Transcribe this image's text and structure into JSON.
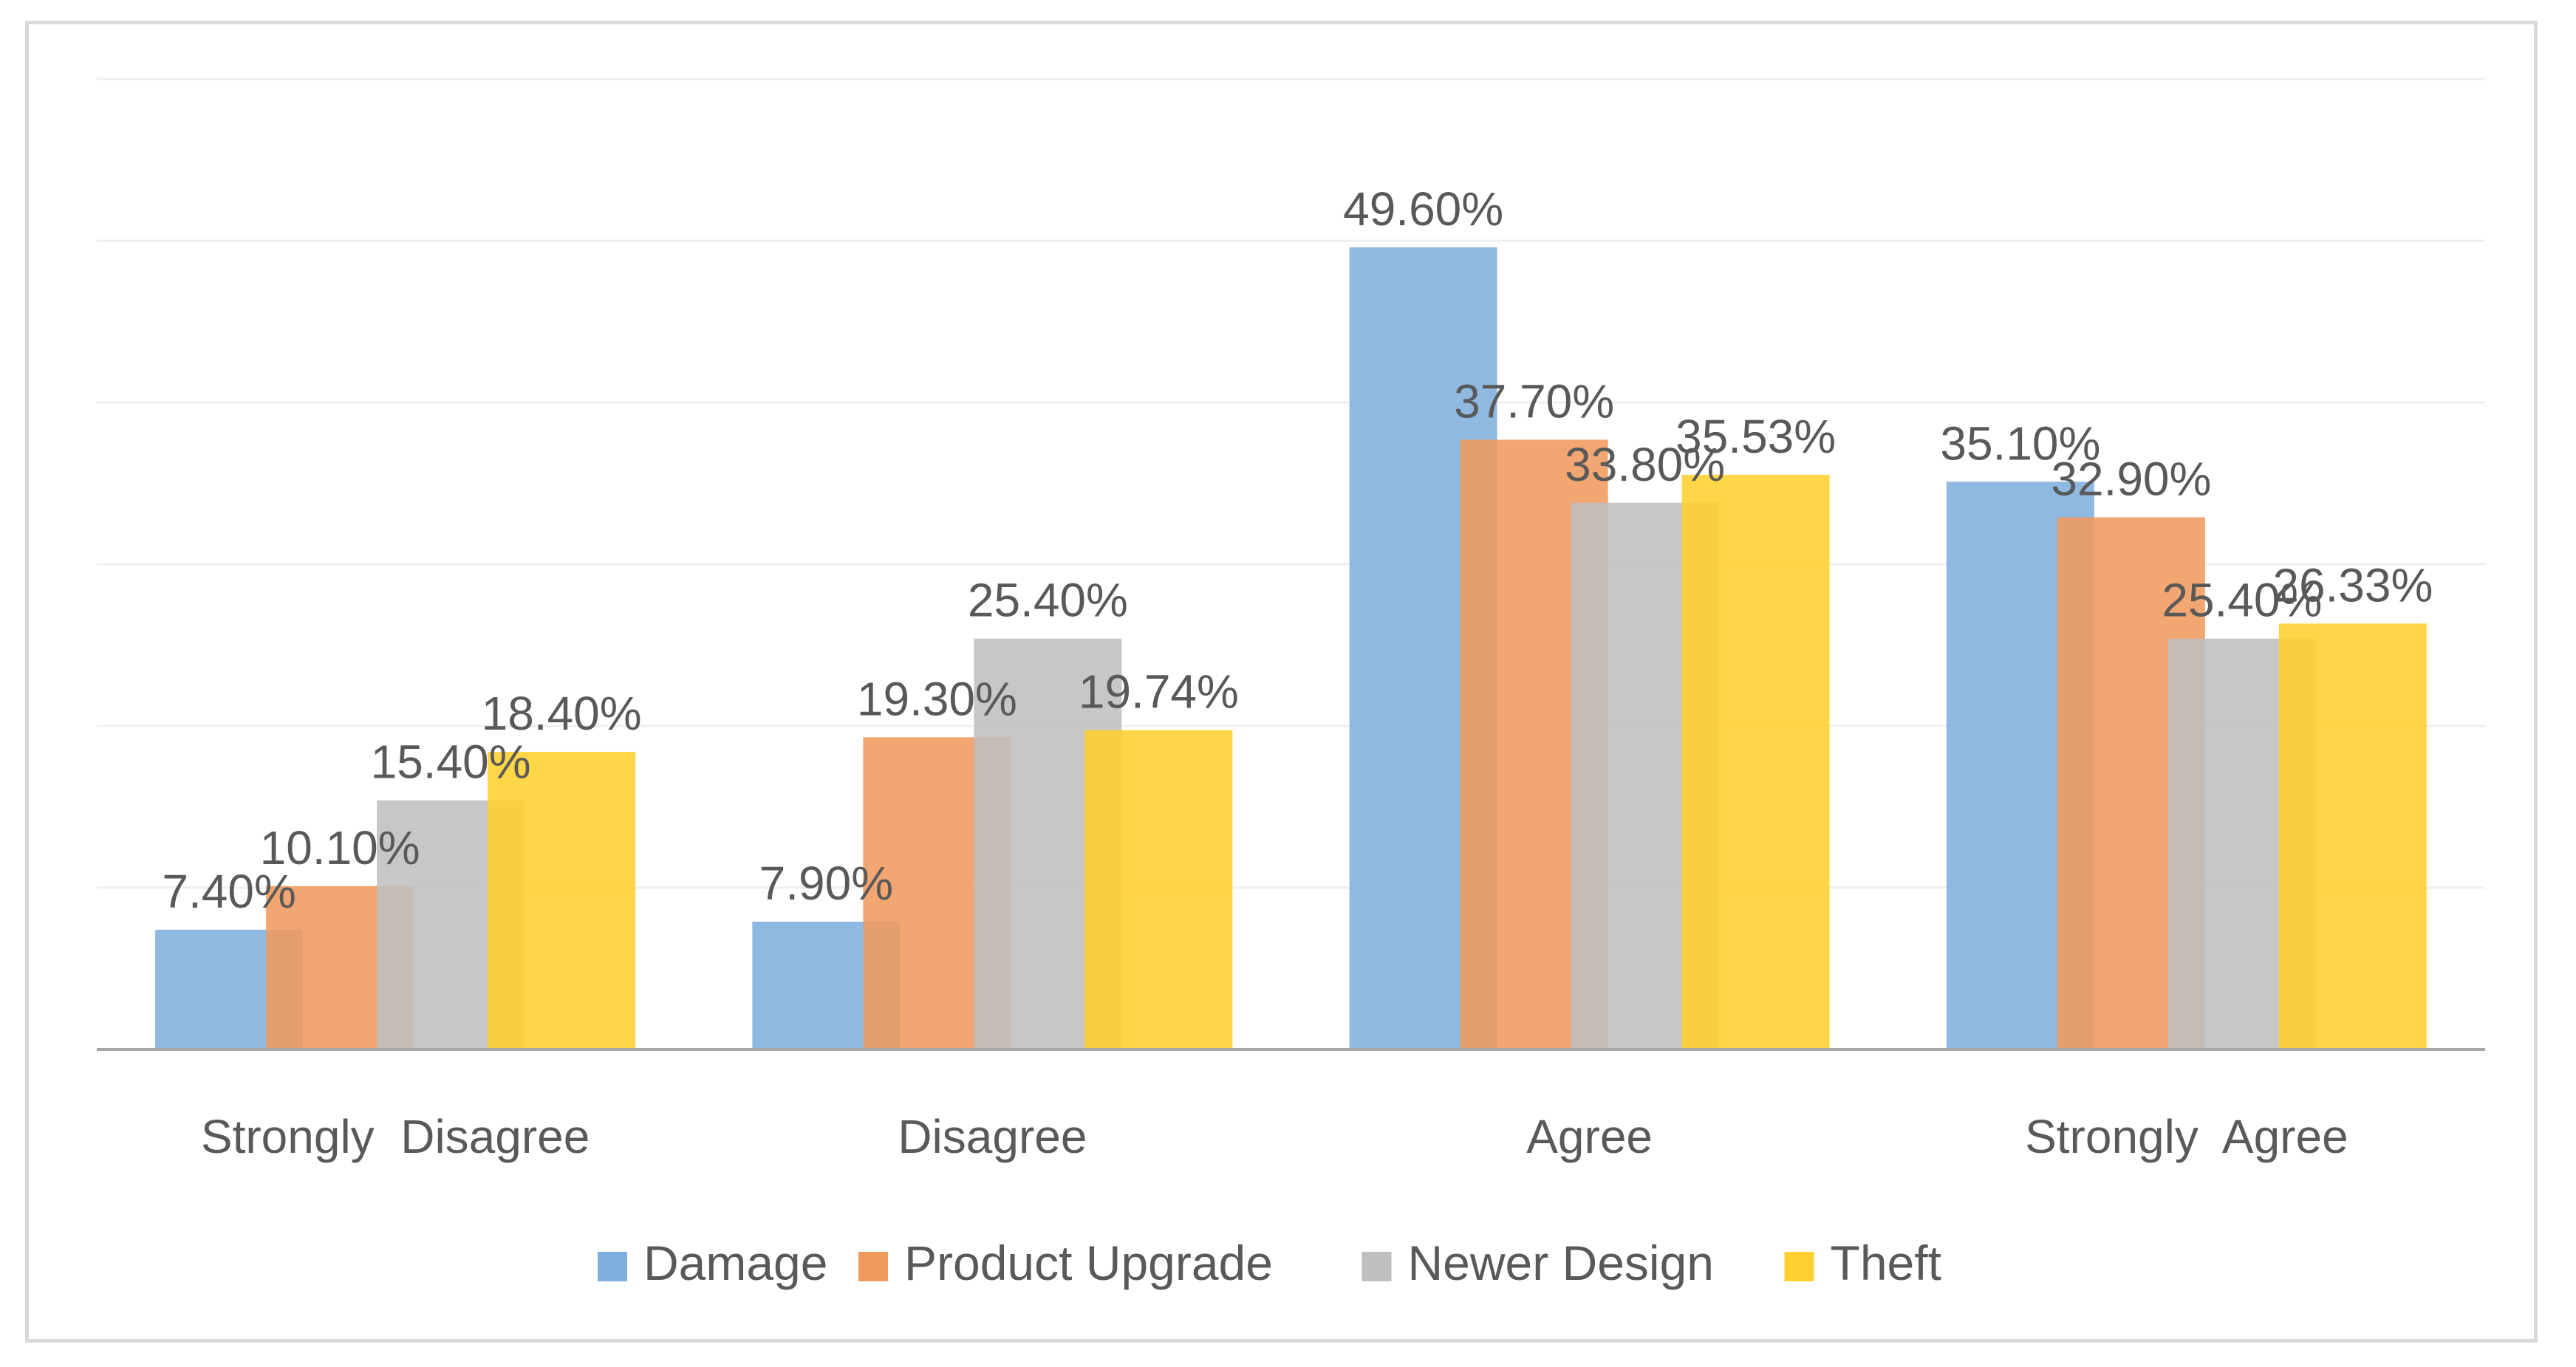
{
  "chart_data": {
    "type": "bar",
    "title": "",
    "xlabel": "",
    "ylabel": "",
    "ylim": [
      0,
      60
    ],
    "grid": true,
    "legend_position": "bottom",
    "categories": [
      "Strongly  Disagree",
      "Disagree",
      "Agree",
      "Strongly  Agree"
    ],
    "series": [
      {
        "name": "Damage",
        "color": "#7FAFDC",
        "values": [
          7.4,
          7.9,
          49.6,
          35.1
        ],
        "labels": [
          "7.40%",
          "7.90%",
          "49.60%",
          "35.10%"
        ]
      },
      {
        "name": "Product Upgrade",
        "color": "#F09A5F",
        "values": [
          10.1,
          19.3,
          37.7,
          32.9
        ],
        "labels": [
          "10.10%",
          "19.30%",
          "37.70%",
          "32.90%"
        ]
      },
      {
        "name": "Newer Design",
        "color": "#BFBFBF",
        "values": [
          15.4,
          25.4,
          33.8,
          25.4
        ],
        "labels": [
          "15.40%",
          "25.40%",
          "33.80%",
          "25.40%"
        ]
      },
      {
        "name": "Theft",
        "color": "#FFD02F",
        "values": [
          18.4,
          19.74,
          35.53,
          26.33
        ],
        "labels": [
          "18.40%",
          "19.74%",
          "35.53%",
          "26.33%"
        ]
      }
    ]
  }
}
